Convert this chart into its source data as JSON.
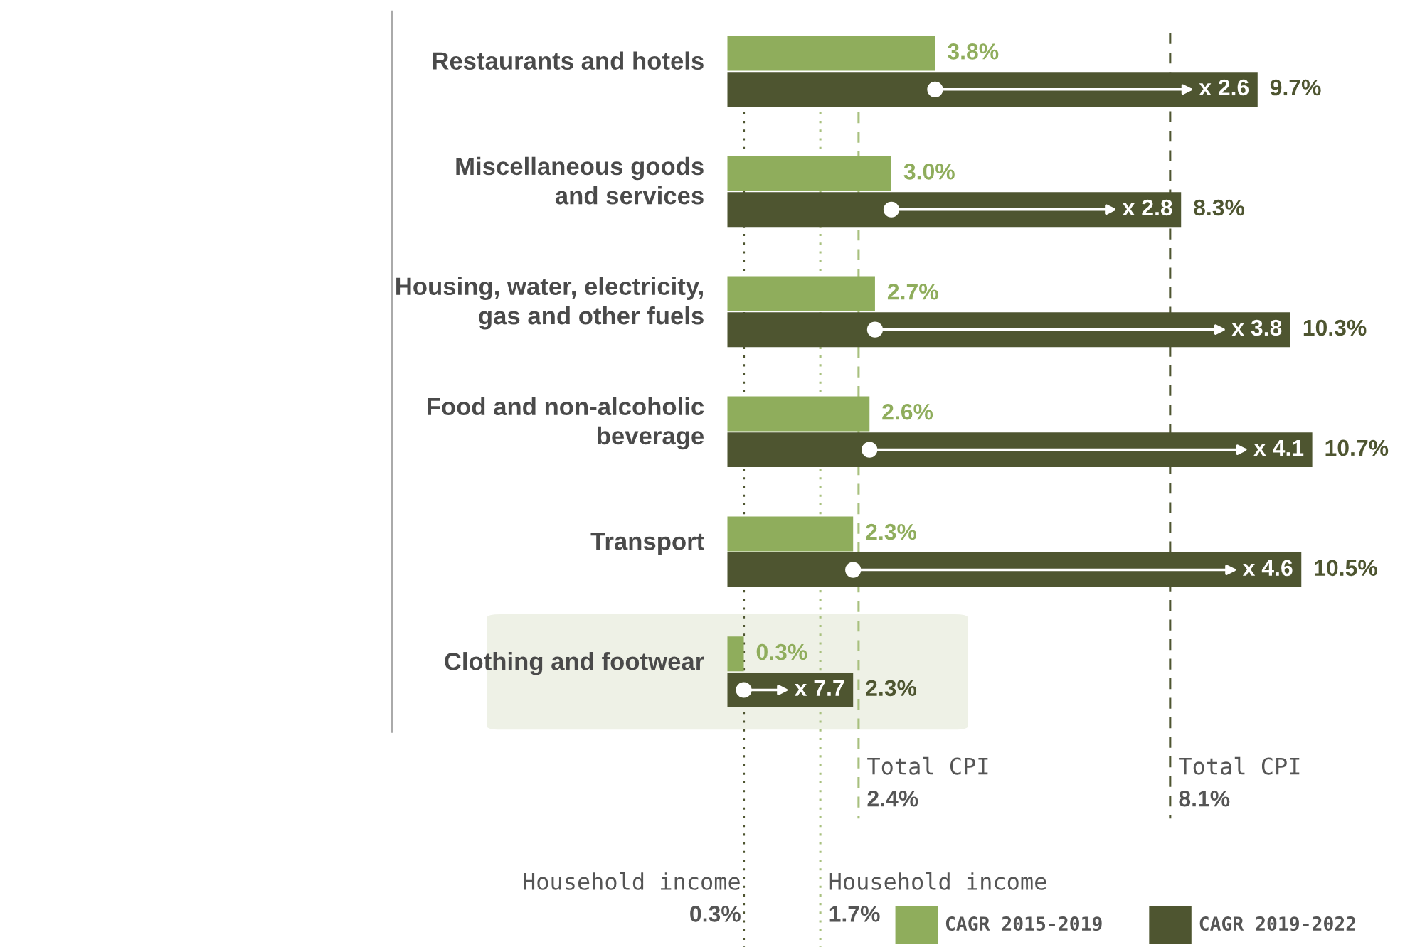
{
  "chart_data": {
    "type": "bar",
    "orientation": "horizontal",
    "categories": [
      "Restaurants and hotels",
      "Miscellaneous goods\nand services",
      "Housing, water, electricity,\ngas and other fuels",
      "Food and non-alcoholic\nbeverage",
      "Transport",
      "Clothing and footwear"
    ],
    "series": [
      {
        "name": "CAGR 2015-2019",
        "color": "#8fad5c",
        "values": [
          3.8,
          3.0,
          2.7,
          2.6,
          2.3,
          0.3
        ],
        "value_labels": [
          "3.8%",
          "3.0%",
          "2.7%",
          "2.6%",
          "2.3%",
          "0.3%"
        ]
      },
      {
        "name": "CAGR 2019-2022",
        "color": "#4e5530",
        "values": [
          9.7,
          8.3,
          10.3,
          10.7,
          10.5,
          2.3
        ],
        "value_labels": [
          "9.7%",
          "8.3%",
          "10.3%",
          "10.7%",
          "10.5%",
          "2.3%"
        ]
      }
    ],
    "tick_labels": false,
    "annotations": [
      "x 2.6",
      "x 2.8",
      "x 3.8",
      "x 4.1",
      "x 4.6",
      "x 7.7"
    ],
    "ref_lines": [
      {
        "axis": "x",
        "value": 0.3,
        "label": "Household income\n0.3%",
        "color": "#4e5530",
        "line_style": "dotted"
      },
      {
        "axis": "x",
        "value": 1.7,
        "label": "Household income\n1.7%",
        "color": "#a8c07e",
        "line_style": "dotted"
      },
      {
        "axis": "x",
        "value": 2.4,
        "label": "Total CPI\n2.4%",
        "color": "#a8c07e",
        "line_style": "dashed"
      },
      {
        "axis": "x",
        "value": 8.1,
        "label": "Total CPI\n8.1%",
        "color": "#4e5530",
        "line_style": "dashed"
      }
    ],
    "legend": "bottom right",
    "grid": false
  }
}
